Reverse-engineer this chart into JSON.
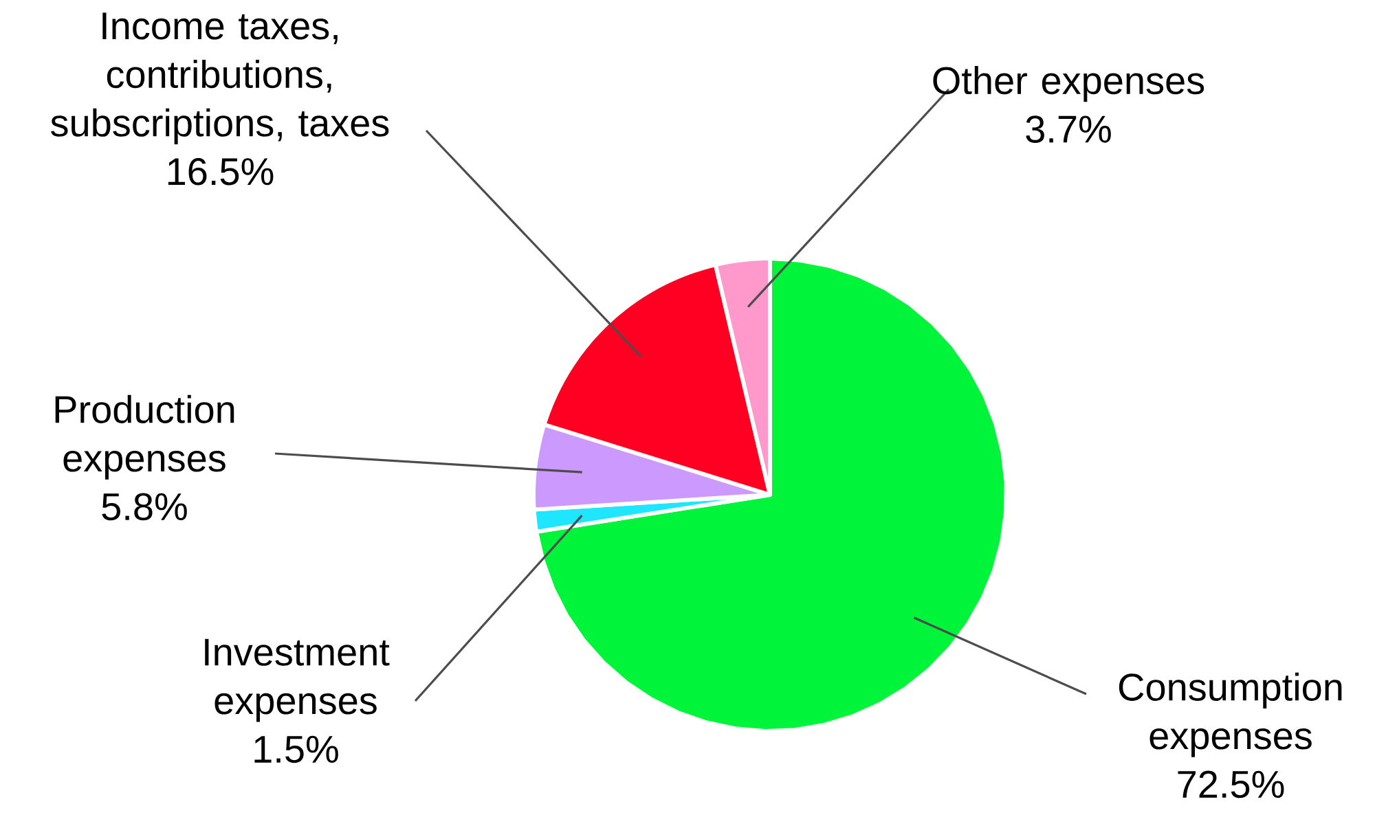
{
  "chart_data": {
    "type": "pie",
    "categories": [
      "Consumption expenses",
      "Investment expenses",
      "Production expenses",
      "Income taxes, contributions, subscriptions, taxes",
      "Other expenses"
    ],
    "values": [
      72.5,
      1.5,
      5.8,
      16.5,
      3.7
    ],
    "value_labels": [
      "72.5%",
      "1.5%",
      "5.8%",
      "16.5%",
      "3.7%"
    ],
    "colors": [
      "#00f53a",
      "#1ee6ff",
      "#cc99ff",
      "#ff0022",
      "#ff99cc"
    ]
  }
}
